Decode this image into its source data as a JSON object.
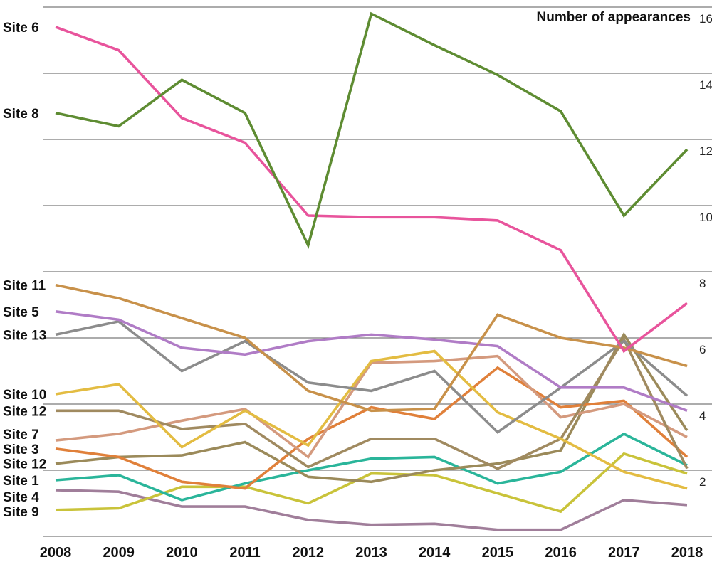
{
  "chart_data": {
    "type": "line",
    "ylabel": "Number of appearances",
    "x": [
      "2008",
      "2009",
      "2010",
      "2011",
      "2012",
      "2013",
      "2014",
      "2015",
      "2016",
      "2017",
      "2018"
    ],
    "ylim": [
      0,
      16
    ],
    "yticks": [
      2,
      4,
      6,
      8,
      10,
      12,
      14,
      16
    ],
    "grid": true,
    "series": [
      {
        "name": "Site 4",
        "color": "#a07e9a",
        "values": [
          1.4,
          1.35,
          0.9,
          0.9,
          0.5,
          0.35,
          0.38,
          0.2,
          0.2,
          1.1,
          0.95
        ]
      },
      {
        "name": "Site 9",
        "color": "#c9c33a",
        "values": [
          0.8,
          0.85,
          1.5,
          1.5,
          1.0,
          1.9,
          1.85,
          1.3,
          0.75,
          2.5,
          1.9
        ]
      },
      {
        "name": "Site 1",
        "color": "#2ab59a",
        "values": [
          1.7,
          1.85,
          1.1,
          1.6,
          2.0,
          2.35,
          2.4,
          1.6,
          1.95,
          3.1,
          2.15
        ]
      },
      {
        "name": "Site 12",
        "color": "#9b8a5a",
        "values": [
          2.2,
          2.4,
          2.45,
          2.85,
          1.8,
          1.65,
          2.0,
          2.2,
          2.6,
          6.1,
          3.2
        ]
      },
      {
        "name": "Site 3",
        "color": "#e0803a",
        "values": [
          2.65,
          2.4,
          1.65,
          1.45,
          2.95,
          3.9,
          3.55,
          5.1,
          3.9,
          4.1,
          2.4
        ]
      },
      {
        "name": "Site 7",
        "color": "#d49a7e",
        "values": [
          2.9,
          3.1,
          3.5,
          3.85,
          2.4,
          5.25,
          5.3,
          5.45,
          3.6,
          4.0,
          3.0
        ]
      },
      {
        "name": "Site 12",
        "color": "#a08a60",
        "values": [
          3.8,
          3.8,
          3.25,
          3.4,
          2.1,
          2.95,
          2.95,
          2.05,
          2.95,
          5.95,
          2.05
        ]
      },
      {
        "name": "Site 10",
        "color": "#e3bc42",
        "values": [
          4.3,
          4.6,
          2.7,
          3.8,
          2.75,
          5.3,
          5.6,
          3.75,
          2.95,
          1.95,
          1.45
        ]
      },
      {
        "name": "Site 13",
        "color": "#8c8c8c",
        "values": [
          6.1,
          6.5,
          5.0,
          5.9,
          4.65,
          4.4,
          5.0,
          3.15,
          4.5,
          5.9,
          4.25
        ]
      },
      {
        "name": "Site 5",
        "color": "#b07cc6",
        "values": [
          6.8,
          6.55,
          5.7,
          5.5,
          5.9,
          6.1,
          5.95,
          5.75,
          4.5,
          4.5,
          3.8
        ]
      },
      {
        "name": "Site 11",
        "color": "#c8914a",
        "values": [
          7.6,
          7.2,
          6.6,
          6.0,
          4.4,
          3.8,
          3.85,
          6.7,
          6.0,
          5.7,
          5.15
        ]
      },
      {
        "name": "Site 6",
        "color": "#e8549c",
        "values": [
          15.4,
          14.7,
          12.65,
          11.9,
          9.7,
          9.65,
          9.65,
          9.55,
          8.65,
          5.6,
          7.05
        ]
      },
      {
        "name": "Site 8",
        "color": "#5e8c32",
        "values": [
          12.8,
          12.4,
          13.8,
          12.8,
          8.8,
          15.8,
          14.85,
          13.95,
          12.85,
          9.7,
          11.7
        ]
      }
    ],
    "labels": [
      {
        "text": "Site 6",
        "y": 15.4
      },
      {
        "text": "Site 8",
        "y": 12.8
      },
      {
        "text": "Site 11",
        "y": 7.6
      },
      {
        "text": "Site 5",
        "y": 6.8
      },
      {
        "text": "Site 13",
        "y": 6.1
      },
      {
        "text": "Site 10",
        "y": 4.3
      },
      {
        "text": "Site 12",
        "y": 3.8
      },
      {
        "text": "Site 7",
        "y": 3.1
      },
      {
        "text": "Site 3",
        "y": 2.65
      },
      {
        "text": "Site 12",
        "y": 2.2
      },
      {
        "text": "Site 1",
        "y": 1.7
      },
      {
        "text": "Site 4",
        "y": 1.2
      },
      {
        "text": "Site 9",
        "y": 0.75
      }
    ]
  }
}
